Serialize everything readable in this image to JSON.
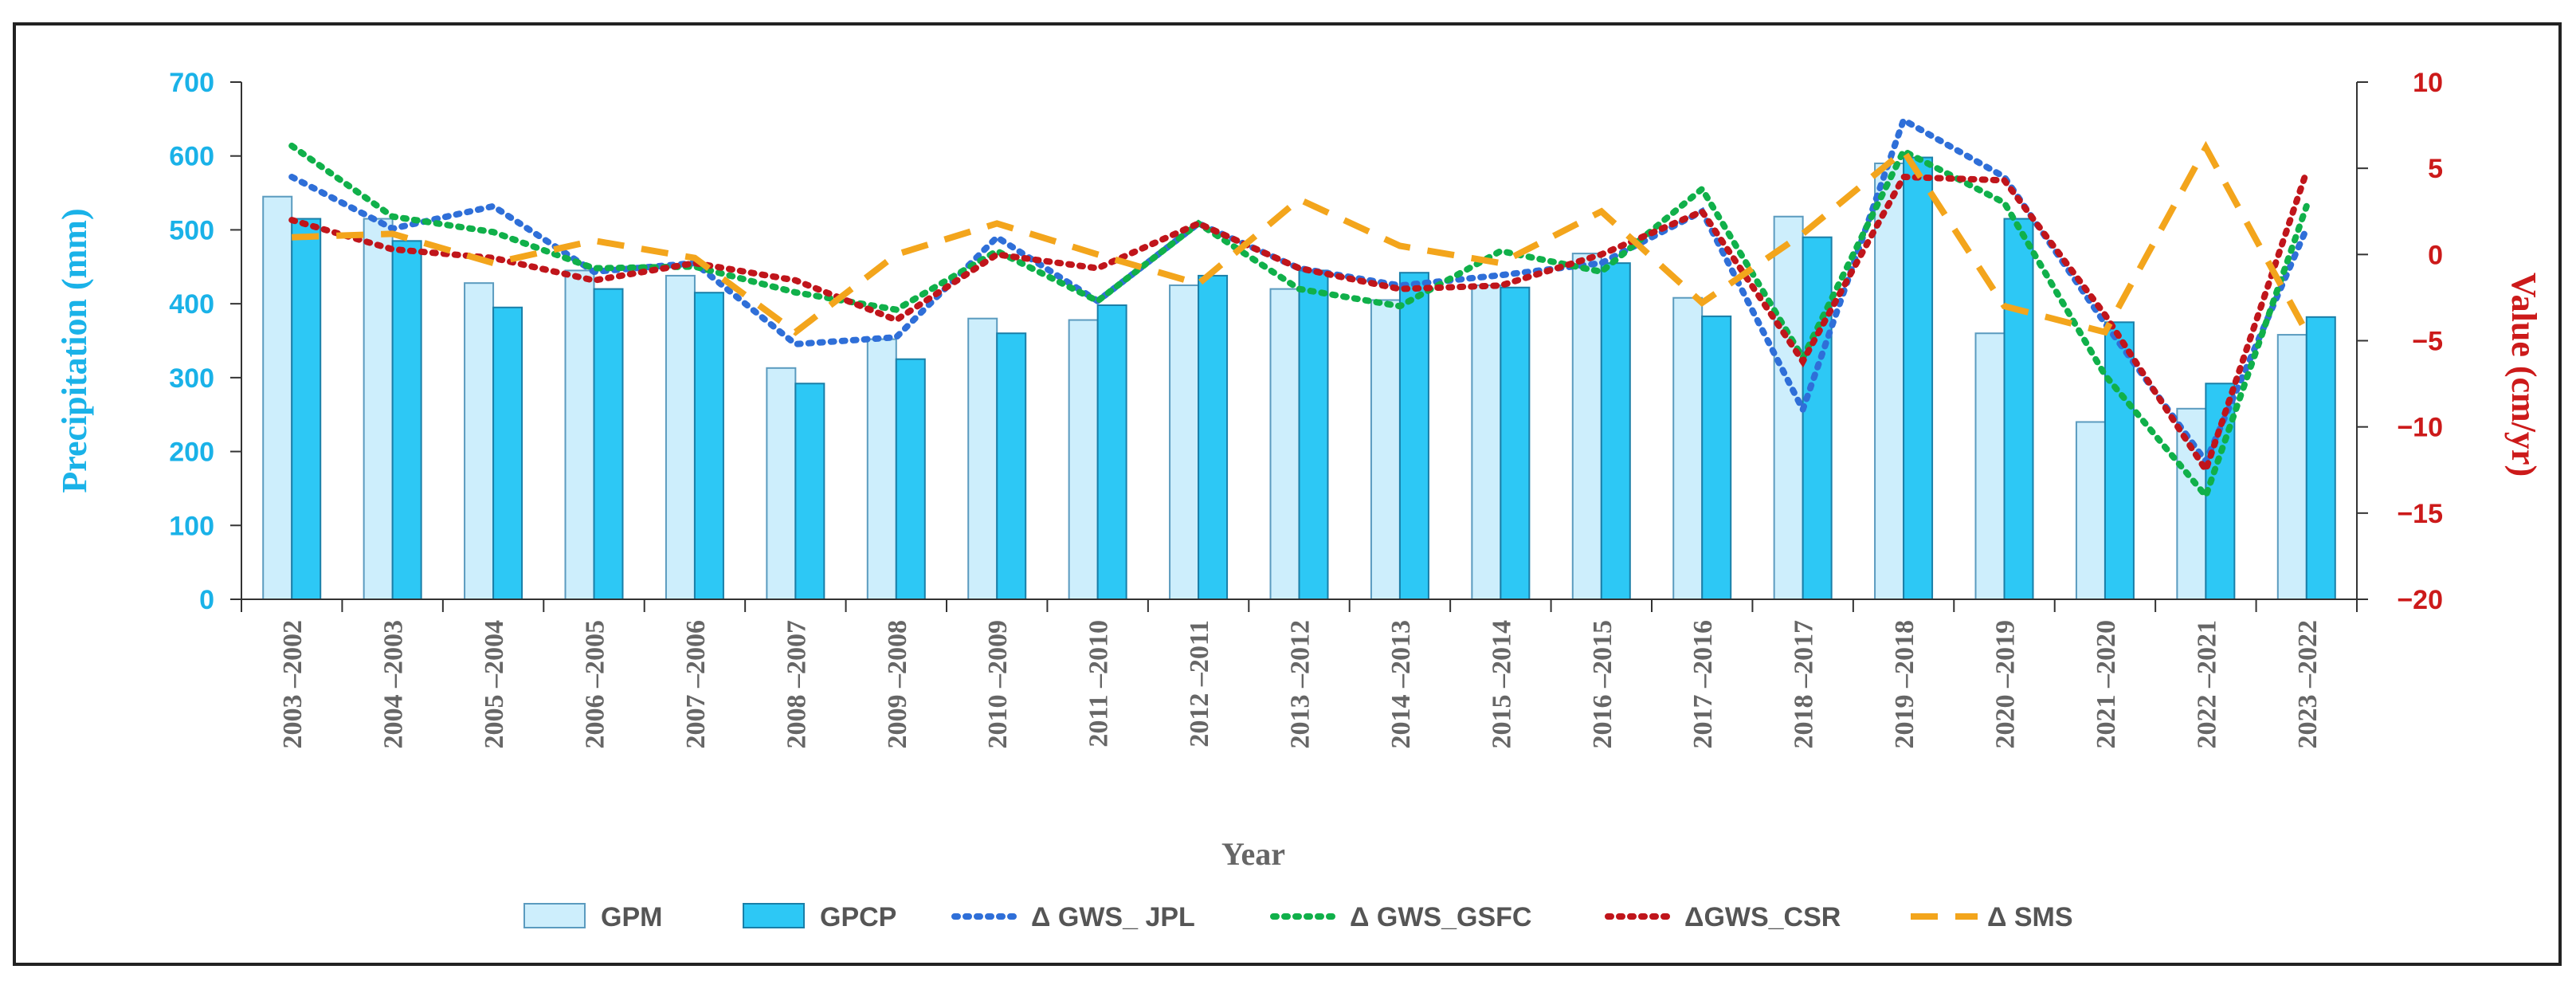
{
  "chart_data": {
    "type": "bar",
    "xlabel": "Year",
    "ylabel_left": "Precipitation (mm)",
    "ylabel_right": "Value (cm/yr)",
    "ylim_left": [
      0,
      700
    ],
    "ylim_right": [
      -20,
      10
    ],
    "yticks_left": [
      "0",
      "100",
      "200",
      "300",
      "400",
      "500",
      "600",
      "700"
    ],
    "yticks_right": [
      "-20",
      "-15",
      "-10",
      "-5",
      "0",
      "5",
      "10"
    ],
    "grid": false,
    "legend_position": "bottom",
    "categories": [
      "2003 –2002",
      "2004 –2003",
      "2005 –2004",
      "2006 –2005",
      "2007 –2006",
      "2008 –2007",
      "2009 –2008",
      "2010 –2009",
      "2011 –2010",
      "2012 –2011",
      "2013 –2012",
      "2014 –2013",
      "2015 –2014",
      "2016 –2015",
      "2017 –2016",
      "2018 –2017",
      "2019 –2018",
      "2020 –2019",
      "2021 –2020",
      "2022 –2021",
      "2023 –2022"
    ],
    "bar_series": [
      {
        "name": "GPM",
        "axis": "left",
        "color": "#cdeefc",
        "stroke": "#5b9bbf",
        "values": [
          545,
          515,
          428,
          445,
          438,
          313,
          352,
          380,
          378,
          425,
          420,
          405,
          425,
          468,
          408,
          518,
          590,
          360,
          240,
          258,
          358
        ]
      },
      {
        "name": "GPCP",
        "axis": "left",
        "color": "#2dc8f5",
        "stroke": "#1a7fa8",
        "values": [
          515,
          485,
          395,
          420,
          415,
          292,
          325,
          360,
          398,
          438,
          445,
          442,
          422,
          455,
          383,
          490,
          598,
          515,
          375,
          292,
          382
        ]
      }
    ],
    "line_series": [
      {
        "name": "Δ GWS_ JPL",
        "axis": "right",
        "color": "#2f6fd8",
        "style": "dotted",
        "values": [
          4.5,
          1.5,
          2.8,
          -1.0,
          -0.5,
          -5.2,
          -4.8,
          1.0,
          -2.7,
          1.8,
          -0.8,
          -1.8,
          -1.2,
          -0.5,
          2.5,
          -9.0,
          7.8,
          4.5,
          -4.0,
          -12.0,
          1.5
        ]
      },
      {
        "name": "Δ GWS_GSFC",
        "axis": "right",
        "color": "#10b04a",
        "style": "dotted",
        "values": [
          6.3,
          2.2,
          1.3,
          -0.8,
          -0.7,
          -2.2,
          -3.2,
          0.2,
          -2.7,
          1.8,
          -2.0,
          -3.0,
          0.2,
          -1.0,
          3.8,
          -6.0,
          6.0,
          3.0,
          -7.0,
          -14.0,
          2.8
        ]
      },
      {
        "name": "ΔGWS_CSR",
        "axis": "right",
        "color": "#c0151b",
        "style": "dotted",
        "values": [
          2.0,
          0.3,
          -0.2,
          -1.5,
          -0.5,
          -1.5,
          -3.8,
          0.0,
          -0.8,
          1.8,
          -0.8,
          -2.0,
          -1.8,
          0.0,
          2.5,
          -6.2,
          4.5,
          4.3,
          -3.5,
          -12.5,
          4.8
        ]
      },
      {
        "name": "Δ SMS",
        "axis": "right",
        "color": "#f3a51c",
        "style": "dashed",
        "values": [
          1.0,
          1.2,
          -0.5,
          0.8,
          -0.2,
          -4.5,
          0.0,
          1.8,
          0.0,
          -1.7,
          3.2,
          0.5,
          -0.5,
          2.5,
          -2.8,
          1.2,
          6.0,
          -3.0,
          -4.5,
          6.2,
          -4.5
        ]
      }
    ]
  }
}
